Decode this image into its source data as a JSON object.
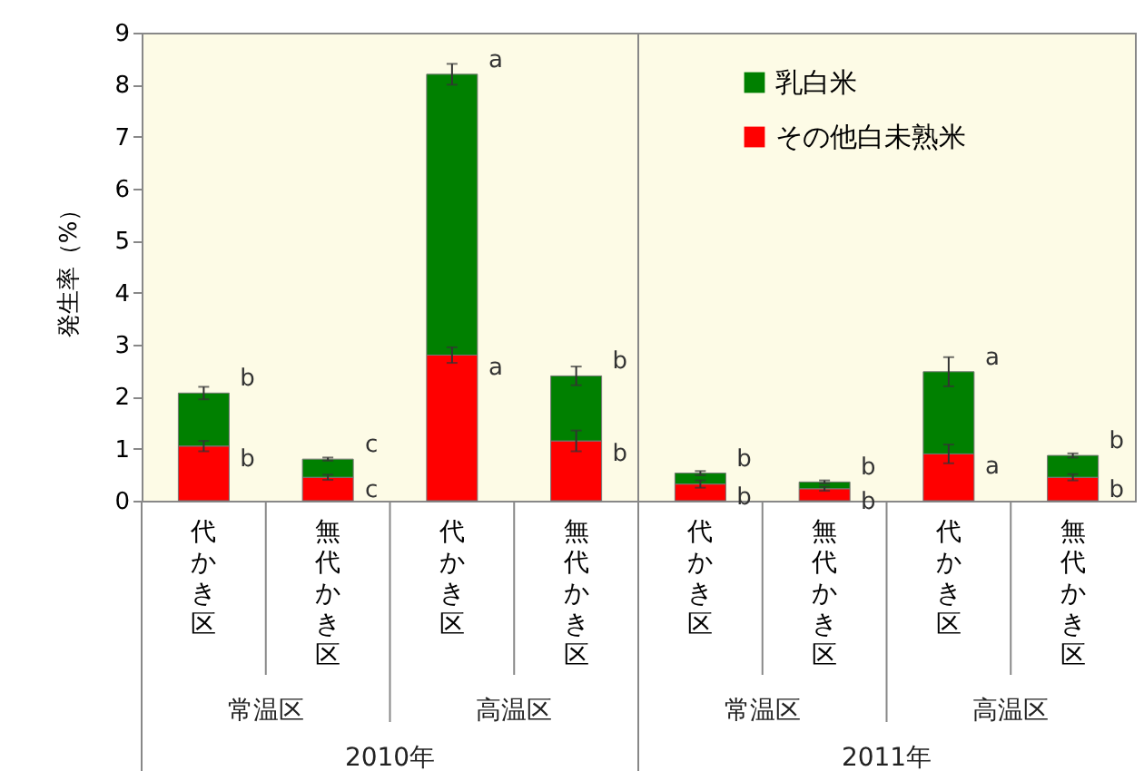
{
  "chart_data": {
    "type": "bar",
    "stacked": true,
    "ylabel": "発生率（%）",
    "categories": [
      "代かき区",
      "無代かき区",
      "代かき区",
      "無代かき区",
      "代かき区",
      "無代かき区",
      "代かき区",
      "無代かき区"
    ],
    "series": [
      {
        "name": "その他白未熟米",
        "color": "#ff0000",
        "values": [
          1.05,
          0.45,
          2.8,
          1.15,
          0.32,
          0.23,
          0.9,
          0.45
        ],
        "errors": [
          0.1,
          0.05,
          0.15,
          0.2,
          0.07,
          0.04,
          0.18,
          0.06
        ],
        "value_labels": [
          "b",
          "c",
          "a",
          "b",
          "b",
          "b",
          "a",
          "b"
        ]
      },
      {
        "name": "乳白米",
        "color": "#008000",
        "values": [
          1.02,
          0.35,
          5.4,
          1.25,
          0.21,
          0.13,
          1.58,
          0.42
        ],
        "errors": [
          0.12,
          0.03,
          0.2,
          0.18,
          0.04,
          0.03,
          0.28,
          0.04
        ],
        "value_labels": [
          "b",
          "c",
          "a",
          "b",
          "b",
          "b",
          "a",
          "b"
        ]
      }
    ],
    "annotations": [
      "常温区",
      "高温区",
      "常温区",
      "高温区",
      "2010年",
      "2011年"
    ],
    "ylim": [
      0,
      9
    ],
    "yticks": [
      0,
      1,
      2,
      3,
      4,
      5,
      6,
      7,
      8,
      9
    ],
    "legend": "top right"
  }
}
